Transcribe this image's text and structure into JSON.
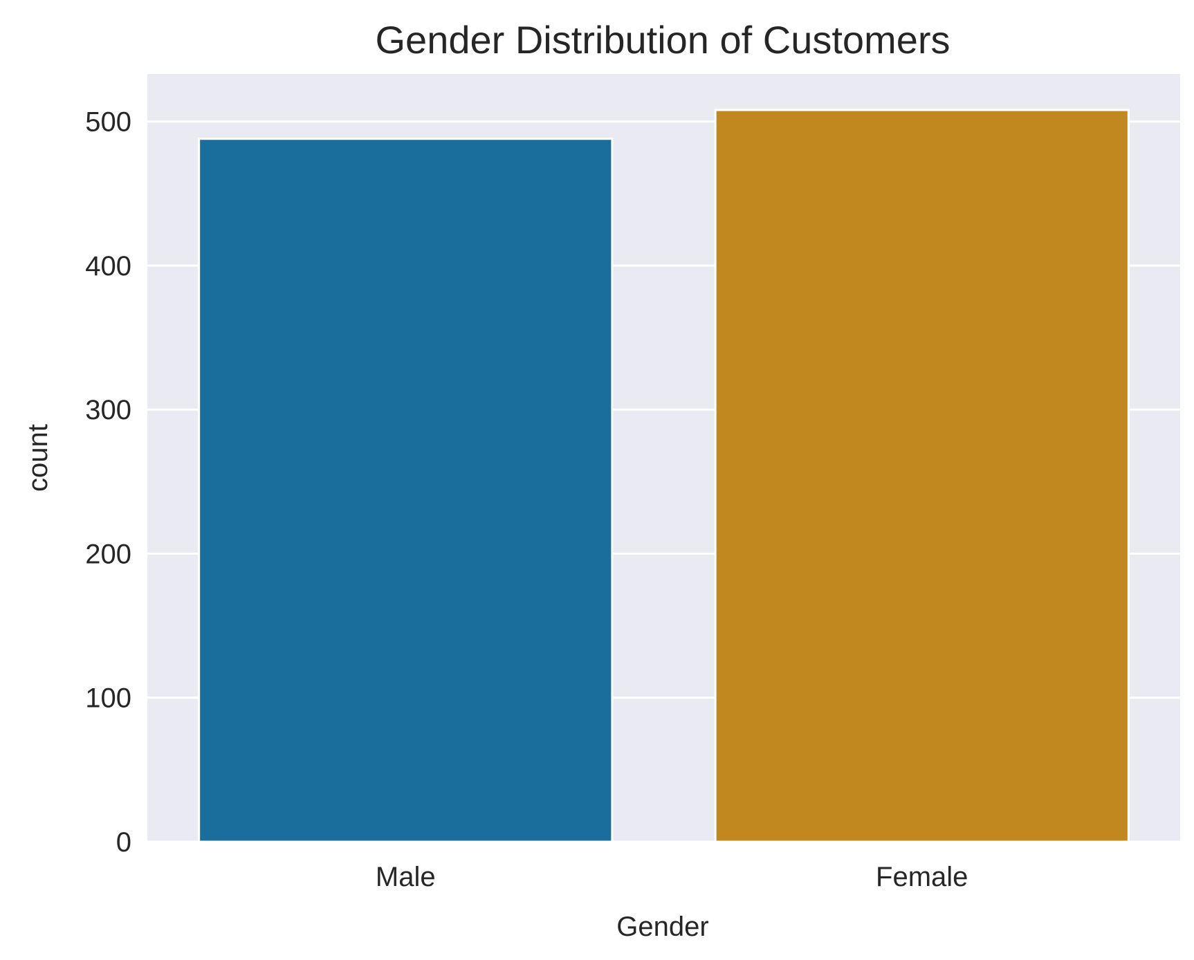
{
  "chart_data": {
    "type": "bar",
    "title": "Gender Distribution of Customers",
    "xlabel": "Gender",
    "ylabel": "count",
    "categories": [
      "Male",
      "Female"
    ],
    "values": [
      488,
      508
    ],
    "ylim": [
      0,
      533
    ],
    "yticks": [
      0,
      100,
      200,
      300,
      400,
      500
    ],
    "grid": true,
    "colors": [
      "#1a6e9c",
      "#c28820"
    ],
    "background_color": "#eaeaf2",
    "gridline_color": "#ffffff"
  }
}
